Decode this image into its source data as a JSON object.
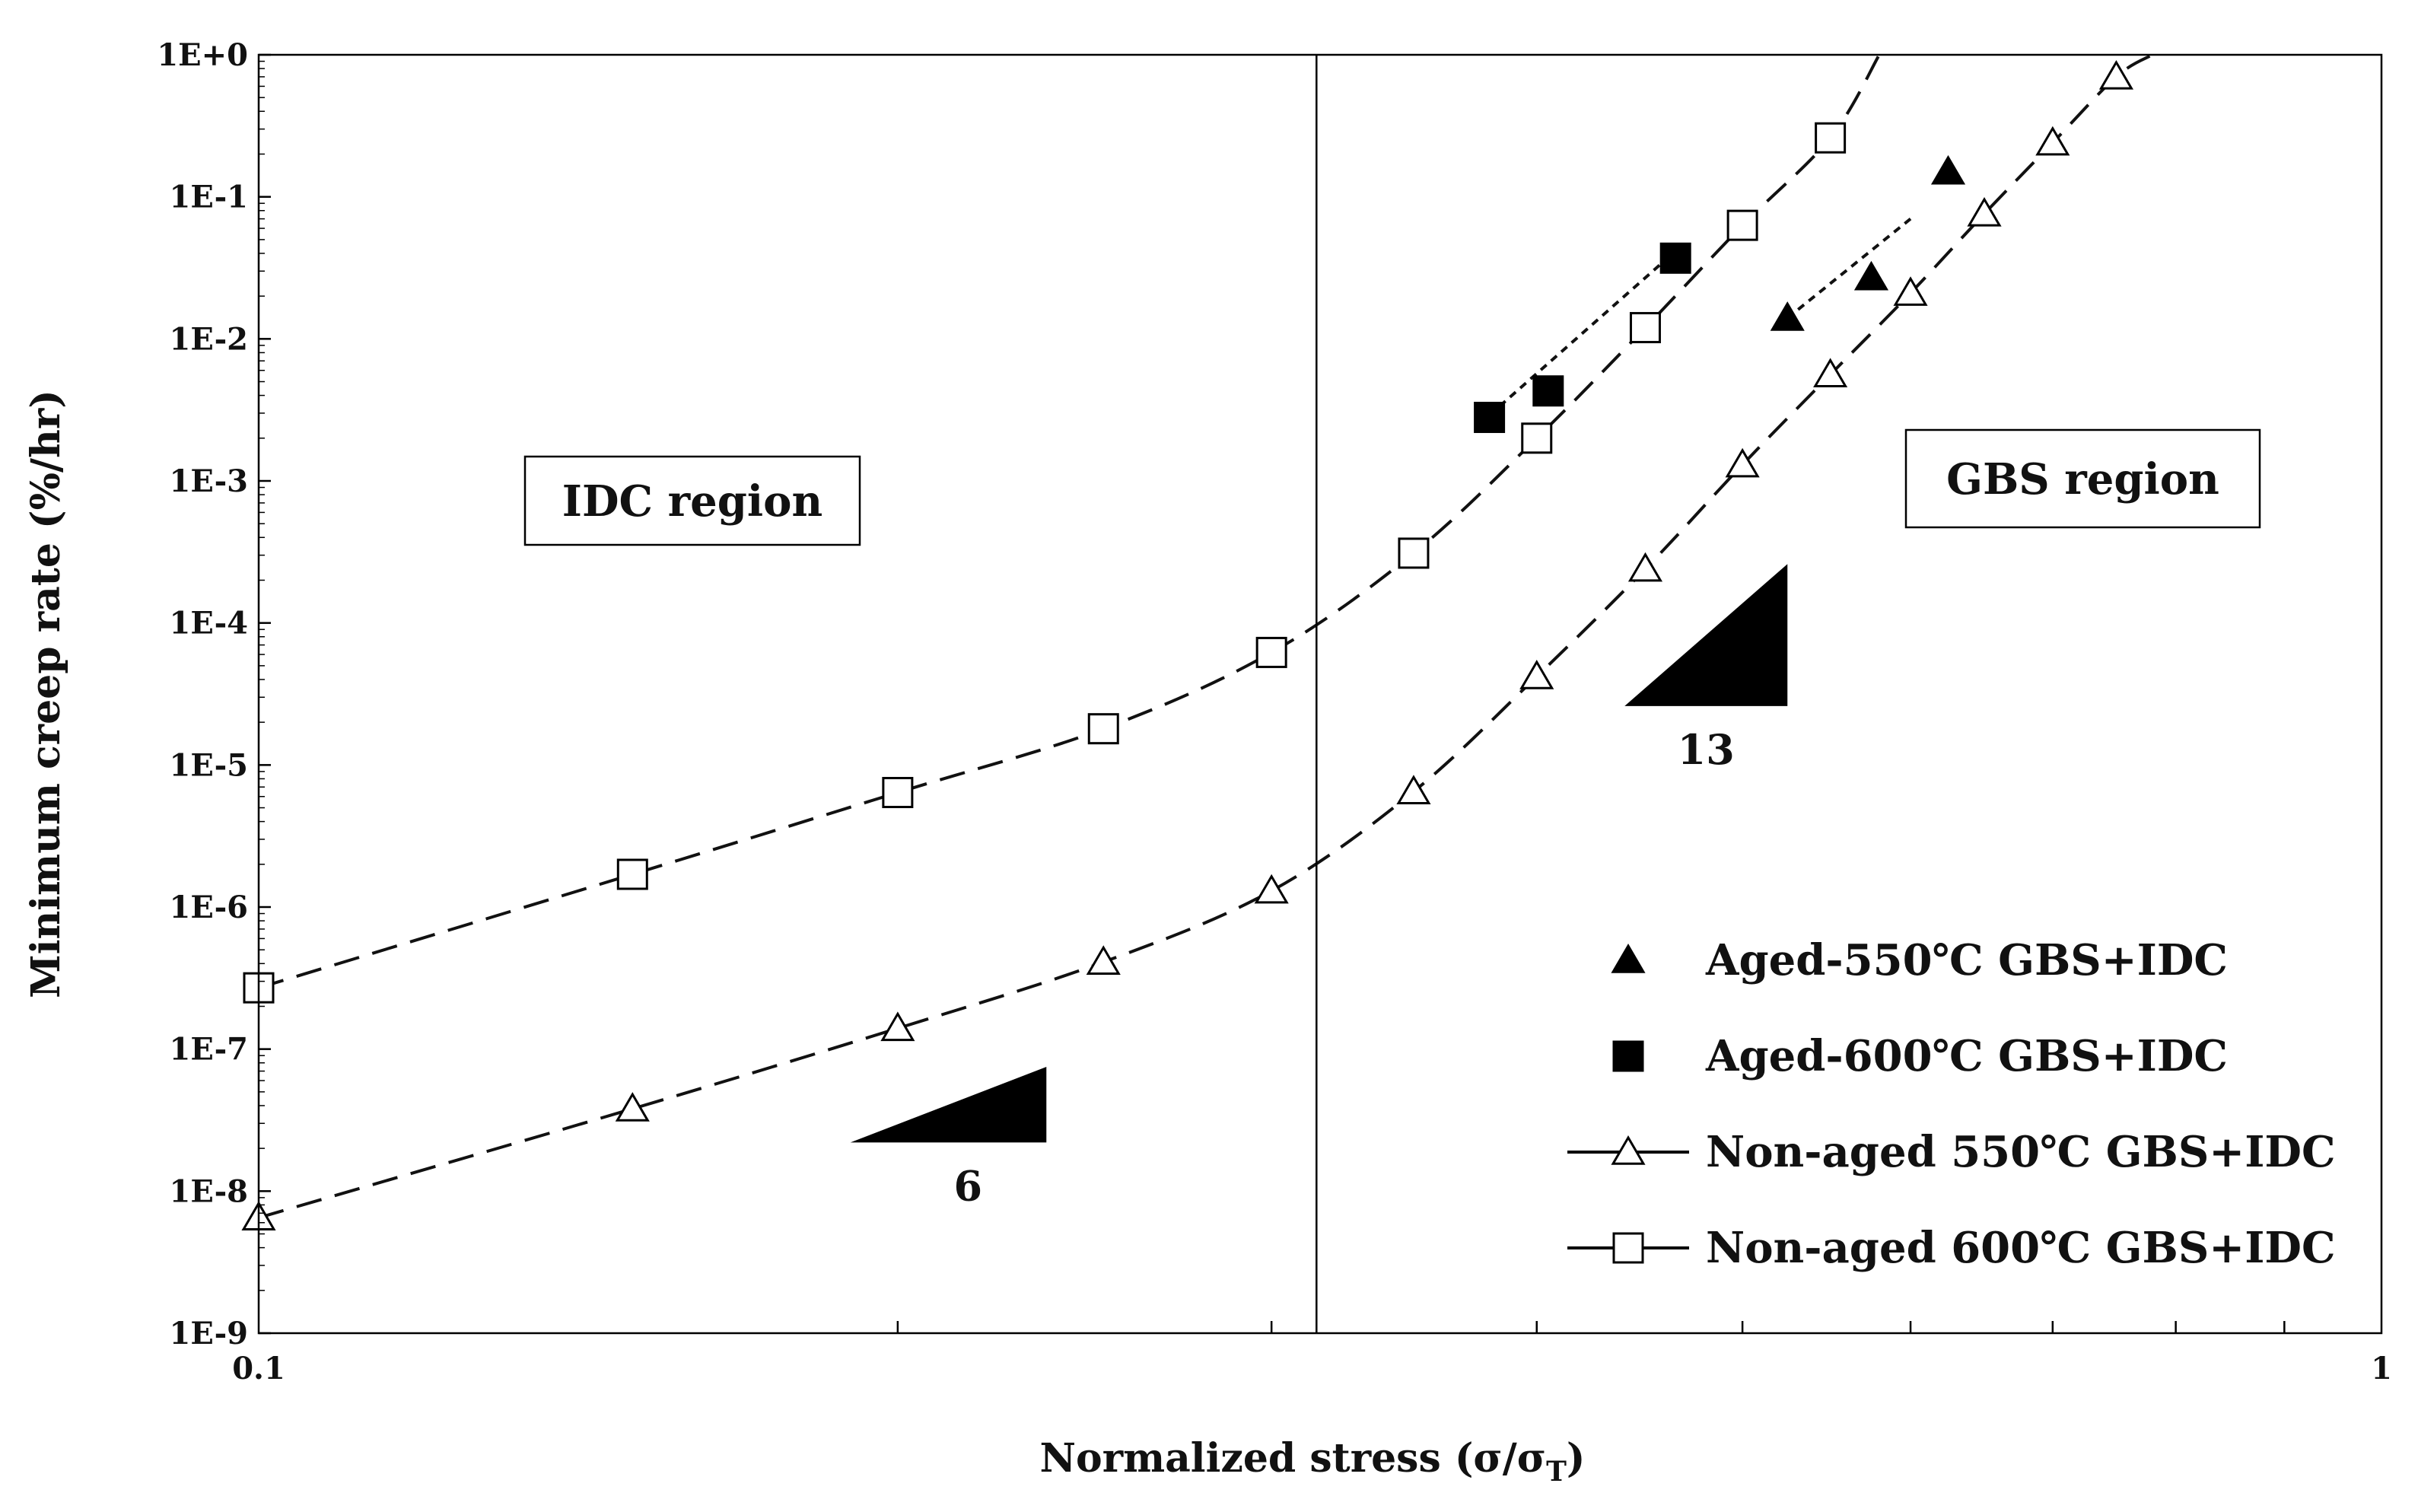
{
  "chart_data": {
    "type": "scatter",
    "xlabel": "Normalized stress (σ/σ",
    "xlabel_sub": "T",
    "xlabel_close": ")",
    "ylabel": "Minimum creep rate (%/hr)",
    "x_scale": "log",
    "y_scale": "log",
    "xlim": [
      0.1,
      1
    ],
    "ylim": [
      1e-09,
      1
    ],
    "x_ticks": [
      {
        "value": 0.1,
        "label": "0.1"
      },
      {
        "value": 1,
        "label": "1"
      }
    ],
    "y_ticks": [
      {
        "value": 1,
        "label": "1E+0"
      },
      {
        "value": 0.1,
        "label": "1E-1"
      },
      {
        "value": 0.01,
        "label": "1E-2"
      },
      {
        "value": 0.001,
        "label": "1E-3"
      },
      {
        "value": 0.0001,
        "label": "1E-4"
      },
      {
        "value": 1e-05,
        "label": "1E-5"
      },
      {
        "value": 1e-06,
        "label": "1E-6"
      },
      {
        "value": 1e-07,
        "label": "1E-7"
      },
      {
        "value": 1e-08,
        "label": "1E-8"
      },
      {
        "value": 1e-09,
        "label": "1E-9"
      }
    ],
    "grid": false,
    "legend_position": "bottom-right",
    "region_divider_x": 0.315,
    "regions": [
      {
        "label": "IDC region"
      },
      {
        "label": "GBS region"
      }
    ],
    "slope_annotations": [
      {
        "label": "6",
        "x": [
          0.19,
          0.235
        ],
        "y": [
          2.2e-08,
          7.5e-08
        ]
      },
      {
        "label": "13",
        "x": [
          0.44,
          0.525
        ],
        "y": [
          2.6e-05,
          0.00026
        ]
      }
    ],
    "series": [
      {
        "name": "Aged-550℃ GBS+IDC",
        "marker": "triangle-filled",
        "points": [
          {
            "x": 0.525,
            "y": 0.014
          },
          {
            "x": 0.575,
            "y": 0.027
          },
          {
            "x": 0.625,
            "y": 0.15
          }
        ],
        "fit": {
          "style": "dotted",
          "x": [
            0.525,
            0.6
          ],
          "y": [
            0.014,
            0.07
          ]
        }
      },
      {
        "name": "Aged-600℃ GBS+IDC",
        "marker": "square-filled",
        "points": [
          {
            "x": 0.38,
            "y": 0.0028
          },
          {
            "x": 0.405,
            "y": 0.0043
          },
          {
            "x": 0.465,
            "y": 0.037
          }
        ],
        "fit": {
          "style": "dotted",
          "x": [
            0.38,
            0.46
          ],
          "y": [
            0.0029,
            0.036
          ]
        }
      },
      {
        "name": "Non-aged 550℃ GBS+IDC",
        "marker": "triangle-open",
        "points": [
          {
            "x": 0.1,
            "y": 6.5e-09
          },
          {
            "x": 0.15,
            "y": 3.8e-08
          },
          {
            "x": 0.2,
            "y": 1.4e-07
          },
          {
            "x": 0.25,
            "y": 4.1e-07
          },
          {
            "x": 0.3,
            "y": 1.3e-06
          },
          {
            "x": 0.35,
            "y": 6.5e-06
          },
          {
            "x": 0.4,
            "y": 4.2e-05
          },
          {
            "x": 0.45,
            "y": 0.00024
          },
          {
            "x": 0.5,
            "y": 0.0013
          },
          {
            "x": 0.55,
            "y": 0.0056
          },
          {
            "x": 0.6,
            "y": 0.021
          },
          {
            "x": 0.65,
            "y": 0.076
          },
          {
            "x": 0.7,
            "y": 0.24
          },
          {
            "x": 0.75,
            "y": 0.7
          }
        ],
        "curve": {
          "style": "dashed",
          "x_end": 0.78,
          "y_end": 1.0
        }
      },
      {
        "name": "Non-aged 600℃ GBS+IDC",
        "marker": "square-open",
        "points": [
          {
            "x": 0.1,
            "y": 2.7e-07
          },
          {
            "x": 0.15,
            "y": 1.7e-06
          },
          {
            "x": 0.2,
            "y": 6.4e-06
          },
          {
            "x": 0.25,
            "y": 1.8e-05
          },
          {
            "x": 0.3,
            "y": 6.2e-05
          },
          {
            "x": 0.35,
            "y": 0.00031
          },
          {
            "x": 0.4,
            "y": 0.002
          },
          {
            "x": 0.45,
            "y": 0.012
          },
          {
            "x": 0.5,
            "y": 0.063
          },
          {
            "x": 0.55,
            "y": 0.26
          }
        ],
        "curve": {
          "style": "dashed",
          "x_end": 0.58,
          "y_end": 1.0
        }
      }
    ]
  }
}
